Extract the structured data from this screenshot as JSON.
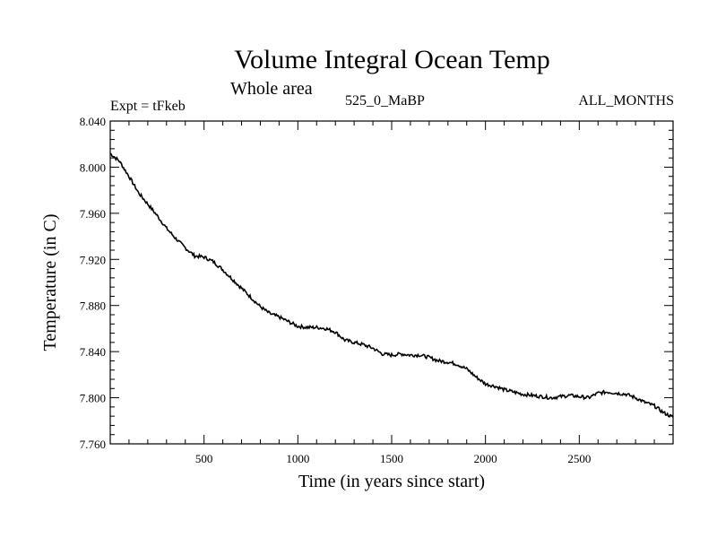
{
  "header": {
    "title": "Volume Integral Ocean Temp",
    "subtitle": "Whole area",
    "expt_label": "Expt = tFkeb",
    "period_label": "525_0_MaBP",
    "months_label": "ALL_MONTHS"
  },
  "chart_data": {
    "type": "line",
    "title": "Volume Integral Ocean Temp",
    "xlabel": "Time (in years since start)",
    "ylabel": "Temperature (in C)",
    "xlim": [
      0,
      3000
    ],
    "ylim": [
      7.76,
      8.04
    ],
    "xticks": [
      500,
      1000,
      1500,
      2000,
      2500
    ],
    "xtick_labels": [
      "500",
      "1000",
      "1500",
      "2000",
      "2500"
    ],
    "yticks": [
      7.76,
      7.8,
      7.84,
      7.88,
      7.92,
      7.96,
      8.0,
      8.04
    ],
    "ytick_labels": [
      "7.760",
      "7.800",
      "7.840",
      "7.880",
      "7.920",
      "7.960",
      "8.000",
      "8.040"
    ],
    "grid": false,
    "series": [
      {
        "color": "#000000",
        "x": [
          0,
          50,
          100,
          150,
          200,
          250,
          300,
          350,
          400,
          450,
          500,
          550,
          600,
          650,
          700,
          750,
          800,
          850,
          900,
          950,
          1000,
          1050,
          1100,
          1150,
          1200,
          1250,
          1300,
          1350,
          1400,
          1450,
          1500,
          1550,
          1600,
          1650,
          1700,
          1750,
          1800,
          1850,
          1900,
          1950,
          2000,
          2050,
          2100,
          2150,
          2200,
          2250,
          2300,
          2350,
          2400,
          2450,
          2500,
          2550,
          2600,
          2650,
          2700,
          2750,
          2800,
          2850,
          2900,
          2950,
          3000
        ],
        "y": [
          8.012,
          8.005,
          7.992,
          7.978,
          7.968,
          7.958,
          7.947,
          7.938,
          7.93,
          7.923,
          7.922,
          7.918,
          7.911,
          7.903,
          7.895,
          7.887,
          7.879,
          7.873,
          7.87,
          7.866,
          7.862,
          7.861,
          7.861,
          7.86,
          7.857,
          7.85,
          7.848,
          7.846,
          7.843,
          7.838,
          7.837,
          7.838,
          7.837,
          7.837,
          7.835,
          7.832,
          7.831,
          7.829,
          7.825,
          7.818,
          7.812,
          7.81,
          7.807,
          7.805,
          7.803,
          7.802,
          7.801,
          7.8,
          7.801,
          7.802,
          7.801,
          7.8,
          7.804,
          7.805,
          7.804,
          7.803,
          7.8,
          7.796,
          7.793,
          7.787,
          7.783
        ]
      }
    ]
  }
}
